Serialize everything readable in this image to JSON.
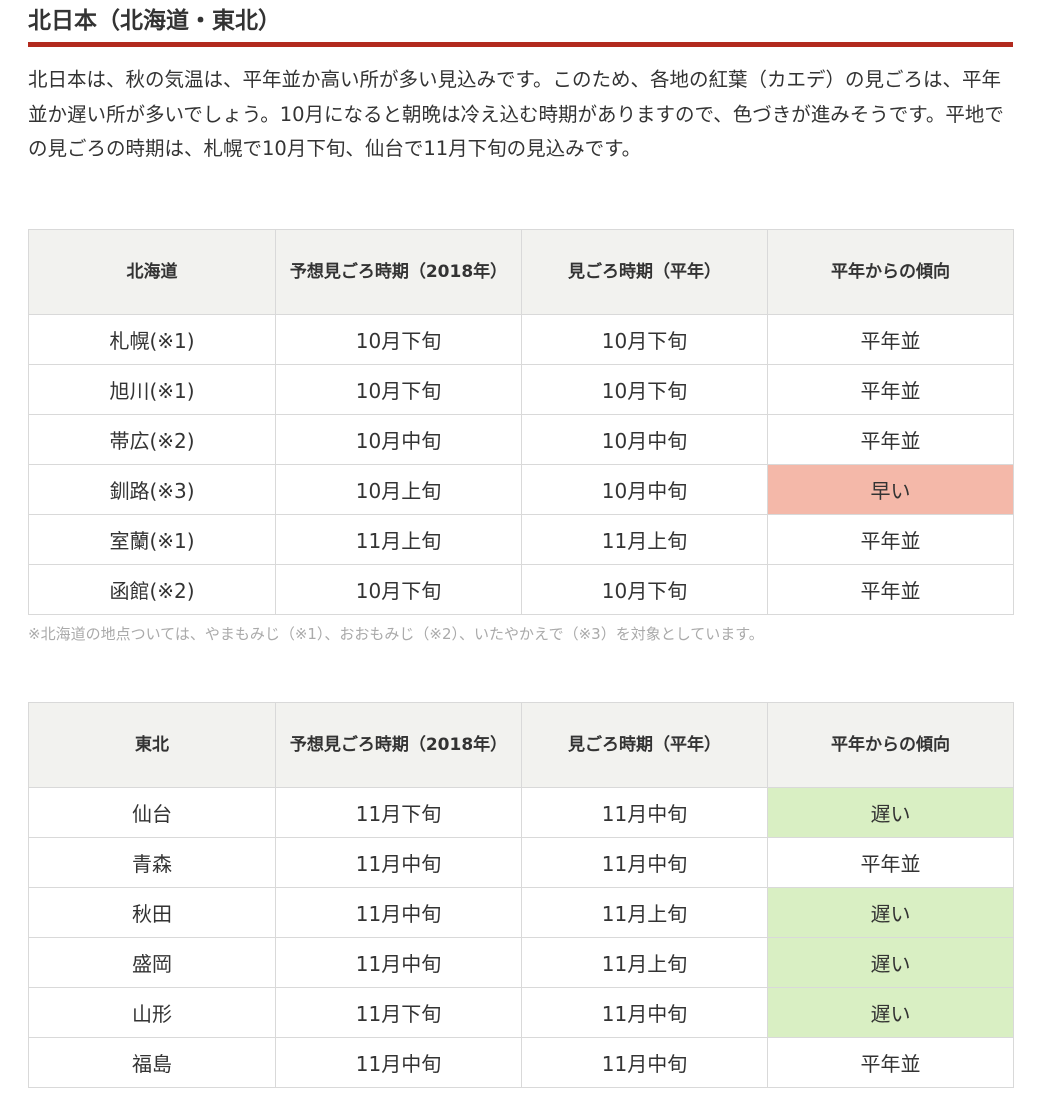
{
  "section": {
    "title": "北日本（北海道・東北）",
    "intro": "北日本は、秋の気温は、平年並か高い所が多い見込みです。このため、各地の紅葉（カエデ）の見ごろは、平年並か遅い所が多いでしょう。10月になると朝晩は冷え込む時期がありますので、色づきが進みそうです。平地での見ごろの時期は、札幌で10月下旬、仙台で11月下旬の見込みです。"
  },
  "colors": {
    "accent_rule": "#b22a1e",
    "early_bg": "#f4b8a9",
    "late_bg": "#d9efc3",
    "header_bg": "#f2f2ef"
  },
  "hokkaido": {
    "headers": [
      "北海道",
      "予想見ごろ時期（2018年）",
      "見ごろ時期（平年）",
      "平年からの傾向"
    ],
    "rows": [
      {
        "place": "札幌(※1)",
        "forecast": "10月下旬",
        "normal": "10月下旬",
        "trend": "平年並",
        "trend_type": "normal"
      },
      {
        "place": "旭川(※1)",
        "forecast": "10月下旬",
        "normal": "10月下旬",
        "trend": "平年並",
        "trend_type": "normal"
      },
      {
        "place": "帯広(※2)",
        "forecast": "10月中旬",
        "normal": "10月中旬",
        "trend": "平年並",
        "trend_type": "normal"
      },
      {
        "place": "釧路(※3)",
        "forecast": "10月上旬",
        "normal": "10月中旬",
        "trend": "早い",
        "trend_type": "early"
      },
      {
        "place": "室蘭(※1)",
        "forecast": "11月上旬",
        "normal": "11月上旬",
        "trend": "平年並",
        "trend_type": "normal"
      },
      {
        "place": "函館(※2)",
        "forecast": "10月下旬",
        "normal": "10月下旬",
        "trend": "平年並",
        "trend_type": "normal"
      }
    ],
    "note": "※北海道の地点ついては、やまもみじ（※1）、おおもみじ（※2）、いたやかえで（※3）を対象としています。"
  },
  "tohoku": {
    "headers": [
      "東北",
      "予想見ごろ時期（2018年）",
      "見ごろ時期（平年）",
      "平年からの傾向"
    ],
    "rows": [
      {
        "place": "仙台",
        "forecast": "11月下旬",
        "normal": "11月中旬",
        "trend": "遅い",
        "trend_type": "late"
      },
      {
        "place": "青森",
        "forecast": "11月中旬",
        "normal": "11月中旬",
        "trend": "平年並",
        "trend_type": "normal"
      },
      {
        "place": "秋田",
        "forecast": "11月中旬",
        "normal": "11月上旬",
        "trend": "遅い",
        "trend_type": "late"
      },
      {
        "place": "盛岡",
        "forecast": "11月中旬",
        "normal": "11月上旬",
        "trend": "遅い",
        "trend_type": "late"
      },
      {
        "place": "山形",
        "forecast": "11月下旬",
        "normal": "11月中旬",
        "trend": "遅い",
        "trend_type": "late"
      },
      {
        "place": "福島",
        "forecast": "11月中旬",
        "normal": "11月中旬",
        "trend": "平年並",
        "trend_type": "normal"
      }
    ]
  }
}
